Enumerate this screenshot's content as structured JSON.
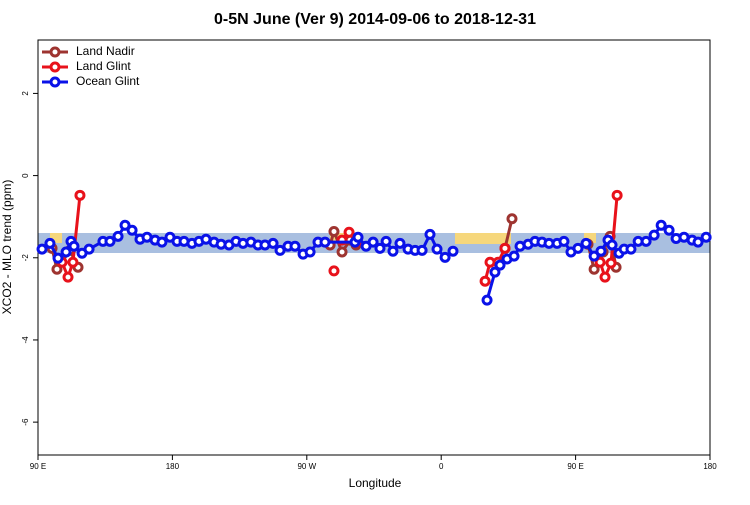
{
  "chart_data": {
    "type": "line",
    "title": "0-5N June (Ver 9)   2014-09-06 to 2018-12-31",
    "xlabel": "Longitude",
    "ylabel": "XCO2 - MLO trend (ppm)",
    "xlim": [
      90,
      540
    ],
    "ylim": [
      -6.8,
      3.3
    ],
    "xticks": [
      {
        "value": 90,
        "label": "90 E"
      },
      180,
      {
        "value": 270,
        "label": "90 W"
      },
      {
        "value": 360,
        "label": "0"
      },
      {
        "value": 450,
        "label": "90 E"
      },
      {
        "value": 540,
        "label": "180"
      }
    ],
    "yticks": [
      -6,
      -4,
      -2,
      0,
      2
    ],
    "legend": "top-left",
    "series": [
      {
        "name": "Land Nadir",
        "color": "#9e3430",
        "x": [
          99.4,
          102.7,
          111.4,
          116.8,
          null,
          285.6,
          288.2,
          293.6,
          299,
          303,
          null,
          402.7,
          407.4,
          null,
          458.3,
          462.4,
          468.4,
          473.1,
          477.1
        ],
        "values": [
          -1.77,
          -2.28,
          -1.82,
          -2.23,
          null,
          -1.69,
          -1.36,
          -1.86,
          -1.57,
          -1.69,
          null,
          -1.77,
          -1.05,
          null,
          -1.67,
          -2.28,
          -1.86,
          -1.48,
          -2.23
        ]
      },
      {
        "name": "Land Glint",
        "color": "#e8121b",
        "x": [
          106.1,
          110.1,
          113.4,
          118.1,
          null,
          288.2,
          null,
          293.6,
          298.3,
          303,
          null,
          389.4,
          392.7,
          398.1,
          402.7,
          null,
          466.4,
          469.7,
          473.7,
          477.8
        ],
        "values": [
          -2.11,
          -2.47,
          -2.11,
          -0.48,
          null,
          -2.32,
          null,
          -1.57,
          -1.38,
          -1.62,
          null,
          -2.57,
          -2.11,
          -2.11,
          -1.77,
          null,
          -2.11,
          -2.47,
          -2.13,
          -0.48
        ]
      },
      {
        "name": "Ocean Glint",
        "color": "#0a12e8",
        "x": [
          92.7,
          98,
          103.4,
          108.8,
          112.1,
          114.1,
          119.5,
          124.2,
          133.5,
          138.2,
          143.6,
          148.3,
          153,
          158.3,
          163,
          168.4,
          173,
          178.4,
          183.1,
          187.8,
          193.1,
          197.8,
          202.5,
          207.9,
          212.6,
          217.9,
          222.6,
          227.3,
          232.6,
          237.3,
          242,
          247.4,
          252.1,
          257.4,
          262.1,
          267.5,
          272.2,
          277.5,
          282.2,
          302.3,
          304.3,
          309.7,
          314.4,
          319,
          323.1,
          327.7,
          332.4,
          337.8,
          342.5,
          347.2,
          352.5,
          357.2,
          362.6,
          367.9,
          null,
          390.7,
          396,
          399.4,
          404.1,
          408.8,
          412.8,
          418.2,
          422.8,
          427.5,
          432.2,
          437.6,
          442.2,
          446.9,
          451.6,
          457,
          462.4,
          467,
          471.7,
          474.4,
          479.1,
          482.5,
          487.1,
          491.9,
          497.2,
          502.6,
          507.3,
          512.6,
          517.3,
          522.6,
          528,
          532,
          537.4
        ],
        "values": [
          -1.79,
          -1.65,
          -2.01,
          -1.86,
          -1.6,
          -1.72,
          -1.89,
          -1.79,
          -1.6,
          -1.6,
          -1.48,
          -1.21,
          -1.33,
          -1.55,
          -1.5,
          -1.57,
          -1.62,
          -1.5,
          -1.6,
          -1.6,
          -1.65,
          -1.6,
          -1.55,
          -1.62,
          -1.67,
          -1.69,
          -1.6,
          -1.65,
          -1.62,
          -1.69,
          -1.69,
          -1.65,
          -1.82,
          -1.72,
          -1.72,
          -1.91,
          -1.86,
          -1.62,
          -1.62,
          -1.62,
          -1.5,
          -1.72,
          -1.62,
          -1.77,
          -1.6,
          -1.84,
          -1.65,
          -1.79,
          -1.82,
          -1.82,
          -1.43,
          -1.79,
          -1.99,
          -1.84,
          null,
          -3.03,
          -2.35,
          -2.18,
          -2.03,
          -1.96,
          -1.72,
          -1.67,
          -1.6,
          -1.62,
          -1.65,
          -1.65,
          -1.6,
          -1.86,
          -1.77,
          -1.65,
          -1.96,
          -1.84,
          -1.57,
          -1.69,
          -1.89,
          -1.79,
          -1.79,
          -1.6,
          -1.6,
          -1.45,
          -1.21,
          -1.33,
          -1.53,
          -1.5,
          -1.57,
          -1.62,
          -1.5
        ]
      }
    ]
  }
}
